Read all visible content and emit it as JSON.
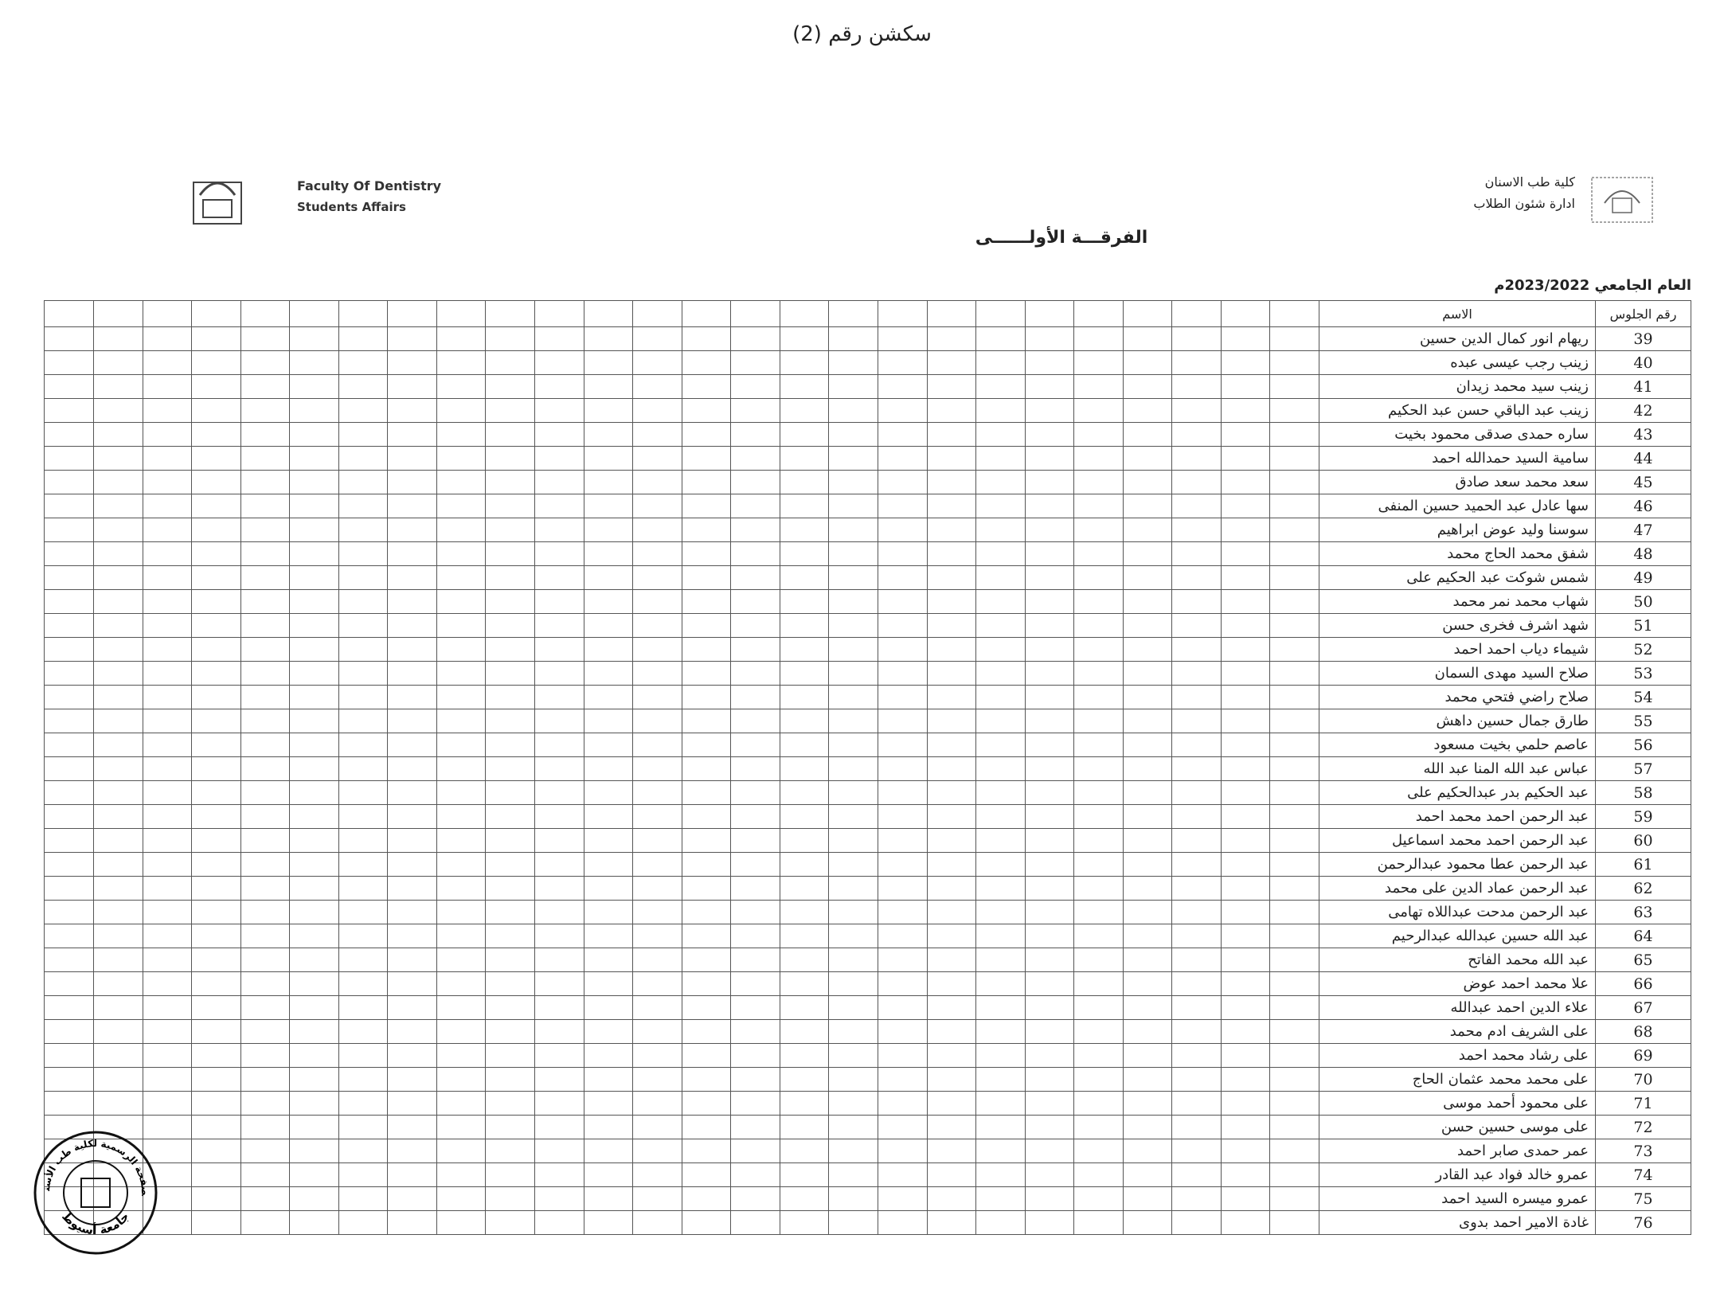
{
  "header": {
    "section": "سكشن رقم (2)",
    "faculty_en": "Faculty Of Dentistry",
    "affairs_en": "Students Affairs",
    "faculty_ar": "كلية طب الاسنان",
    "affairs_ar": "ادارة شئون الطلاب",
    "level": "الفرقـــة الأولــــــى",
    "year": "العام الجامعي 2023/2022م"
  },
  "table": {
    "headers": [
      "رقم الجلوس",
      "الاسم"
    ],
    "rows": [
      [
        39,
        "ريهام انور كمال الدين حسين"
      ],
      [
        40,
        "زينب رجب عيسى عبده"
      ],
      [
        41,
        "زينب سيد محمد زيدان"
      ],
      [
        42,
        "زينب عبد الباقي حسن عبد الحكيم"
      ],
      [
        43,
        "ساره حمدى صدقى محمود بخيت"
      ],
      [
        44,
        "سامية السيد حمدالله احمد"
      ],
      [
        45,
        "سعد محمد سعد صادق"
      ],
      [
        46,
        "سها عادل عبد الحميد حسين المنفى"
      ],
      [
        47,
        "سوسنا وليد عوض ابراهيم"
      ],
      [
        48,
        "شفق محمد الحاج محمد"
      ],
      [
        49,
        "شمس شوكت عبد الحكيم على"
      ],
      [
        50,
        "شهاب محمد نمر محمد"
      ],
      [
        51,
        "شهد اشرف فخرى حسن"
      ],
      [
        52,
        "شيماء دياب احمد احمد"
      ],
      [
        53,
        "صلاح السيد مهدى السمان"
      ],
      [
        54,
        "صلاح راضي فتحي محمد"
      ],
      [
        55,
        "طارق جمال حسين داهش"
      ],
      [
        56,
        "عاصم حلمي بخيت مسعود"
      ],
      [
        57,
        "عباس عبد الله المنا عبد الله"
      ],
      [
        58,
        "عبد الحكيم بدر عبدالحكيم على"
      ],
      [
        59,
        "عبد الرحمن احمد محمد احمد"
      ],
      [
        60,
        "عبد الرحمن احمد محمد اسماعيل"
      ],
      [
        61,
        "عبد الرحمن عطا محمود عبدالرحمن"
      ],
      [
        62,
        "عبد الرحمن عماد الدين على محمد"
      ],
      [
        63,
        "عبد الرحمن مدحت عبداللاه تهامى"
      ],
      [
        64,
        "عبد الله حسين عبدالله عبدالرحيم"
      ],
      [
        65,
        "عبد الله محمد الفاتح"
      ],
      [
        66,
        "علا محمد احمد عوض"
      ],
      [
        67,
        "علاء الدين احمد عبدالله"
      ],
      [
        68,
        "على الشريف ادم محمد"
      ],
      [
        69,
        "على رشاد محمد احمد"
      ],
      [
        70,
        "على محمد محمد عثمان الحاج"
      ],
      [
        71,
        "على محمود أحمد موسى"
      ],
      [
        72,
        "على موسى حسين حسن"
      ],
      [
        73,
        "عمر حمدى صابر احمد"
      ],
      [
        74,
        "عمرو خالد فواد عبد القادر"
      ],
      [
        75,
        "عمرو ميسره السيد احمد"
      ],
      [
        76,
        "غادة الامير احمد بدوى"
      ]
    ]
  },
  "stamp": {
    "top": "الصفحة الرسمية لكلية طب الأسنان",
    "bottom": "جامعة أسيوط"
  }
}
